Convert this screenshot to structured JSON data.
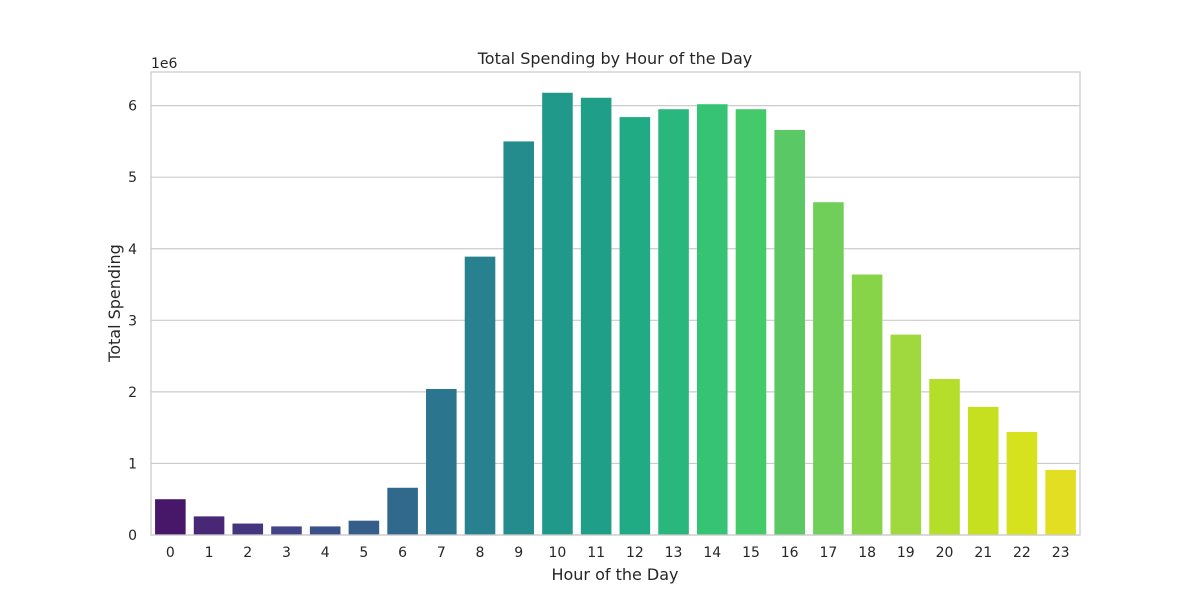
{
  "chart_data": {
    "type": "bar",
    "title": "Total Spending by Hour of the Day",
    "xlabel": "Hour of the Day",
    "ylabel": "Total Spending",
    "y_scale_label": "1e6",
    "categories": [
      "0",
      "1",
      "2",
      "3",
      "4",
      "5",
      "6",
      "7",
      "8",
      "9",
      "10",
      "11",
      "12",
      "13",
      "14",
      "15",
      "16",
      "17",
      "18",
      "19",
      "20",
      "21",
      "22",
      "23"
    ],
    "values": [
      500000,
      260000,
      160000,
      120000,
      120000,
      200000,
      660000,
      2040000,
      3890000,
      5500000,
      6180000,
      6110000,
      5840000,
      5950000,
      6020000,
      5950000,
      5660000,
      4650000,
      3640000,
      2800000,
      2180000,
      1790000,
      1440000,
      910000
    ],
    "ylim": [
      0,
      6470000
    ],
    "y_ticks": [
      0,
      1,
      2,
      3,
      4,
      5,
      6
    ],
    "grid": "horizontal",
    "colors": [
      "#471869",
      "#482776",
      "#45357f",
      "#414487",
      "#3b5189",
      "#365e8b",
      "#31698c",
      "#2b758e",
      "#28818e",
      "#248c8d",
      "#20998b",
      "#1f9f88",
      "#21ab84",
      "#29b77d",
      "#36c474",
      "#45ca6b",
      "#5ac864",
      "#6fcf58",
      "#87d448",
      "#9fd93e",
      "#b5de2b",
      "#c6e020",
      "#d6e21d",
      "#e2df22"
    ]
  }
}
